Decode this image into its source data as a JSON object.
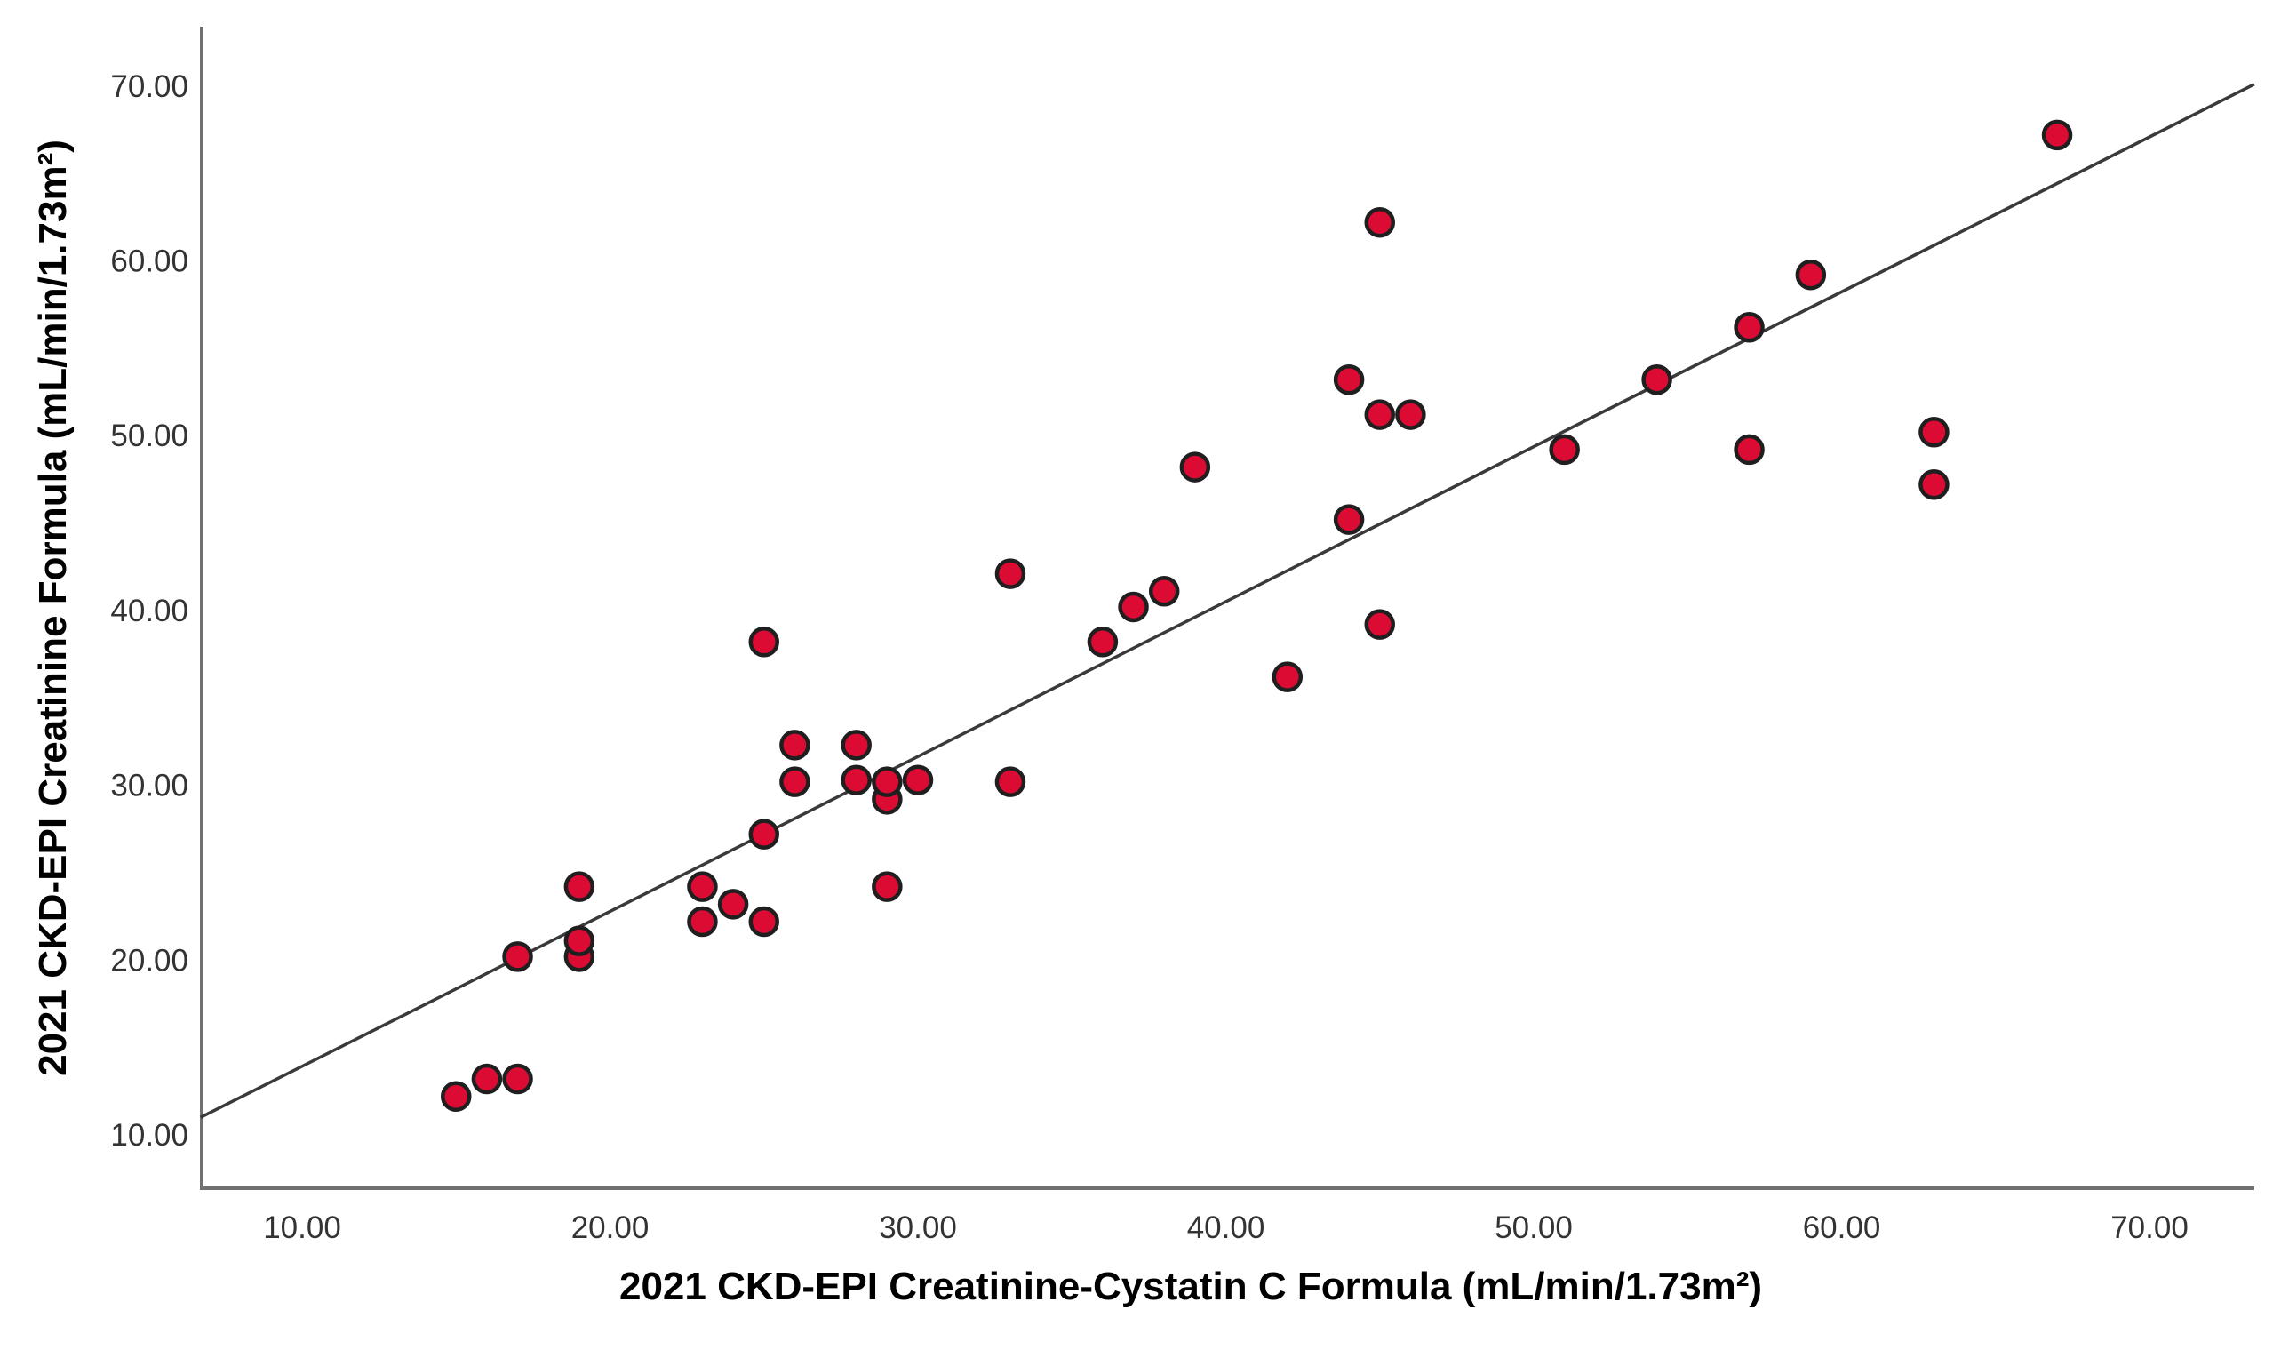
{
  "figure": {
    "background": "#ffffff"
  },
  "chart_data": {
    "type": "scatter",
    "title": "",
    "xlabel": "2021 CKD-EPI Creatinine-Cystatin C Formula (mL/min/1.73m²)",
    "ylabel": "2021 CKD-EPI Creatinine Formula (mL/min/1.73m²)",
    "xlim": [
      6.7,
      73.9
    ],
    "ylim": [
      6.9,
      74.8
    ],
    "grid": false,
    "legend": "none",
    "x_ticks": [
      {
        "v": 10,
        "label": "10.00"
      },
      {
        "v": 20,
        "label": "20.00"
      },
      {
        "v": 30,
        "label": "30.00"
      },
      {
        "v": 40,
        "label": "40.00"
      },
      {
        "v": 50,
        "label": "50.00"
      },
      {
        "v": 60,
        "label": "60.00"
      },
      {
        "v": 70,
        "label": "70.00"
      }
    ],
    "y_ticks": [
      {
        "v": 10,
        "label": "10.00"
      },
      {
        "v": 20,
        "label": "20.00"
      },
      {
        "v": 30,
        "label": "30.00"
      },
      {
        "v": 40,
        "label": "40.00"
      },
      {
        "v": 50,
        "label": "50.00"
      },
      {
        "v": 60,
        "label": "60.00"
      },
      {
        "v": 70,
        "label": "70.00"
      }
    ],
    "points": [
      [
        15,
        12.2
      ],
      [
        16,
        13.2
      ],
      [
        17,
        13.2
      ],
      [
        17,
        20.2
      ],
      [
        19,
        20.2
      ],
      [
        19,
        21.1
      ],
      [
        19,
        24.2
      ],
      [
        23,
        22.2
      ],
      [
        23,
        24.2
      ],
      [
        24,
        23.2
      ],
      [
        25,
        22.2
      ],
      [
        25,
        27.2
      ],
      [
        25,
        38.2
      ],
      [
        26,
        30.2
      ],
      [
        26,
        32.3
      ],
      [
        28,
        30.3
      ],
      [
        28,
        32.3
      ],
      [
        29,
        24.2
      ],
      [
        29,
        29.2
      ],
      [
        29,
        30.2
      ],
      [
        30,
        30.3
      ],
      [
        33,
        30.2
      ],
      [
        33,
        42.1
      ],
      [
        36,
        38.2
      ],
      [
        37,
        40.2
      ],
      [
        38,
        41.1
      ],
      [
        39,
        48.2
      ],
      [
        42,
        36.2
      ],
      [
        44,
        45.2
      ],
      [
        44,
        53.2
      ],
      [
        45,
        39.2
      ],
      [
        45,
        51.2
      ],
      [
        45,
        62.2
      ],
      [
        46,
        51.2
      ],
      [
        51,
        49.2
      ],
      [
        54,
        53.2
      ],
      [
        57,
        49.2
      ],
      [
        57,
        56.2
      ],
      [
        59,
        59.2
      ],
      [
        63,
        47.2
      ],
      [
        63,
        50.2
      ],
      [
        67,
        67.2
      ]
    ],
    "fit_line": {
      "x1": 6.7,
      "y1": 11.0,
      "x2": 73.4,
      "y2": 70.1
    },
    "colors": {
      "marker_fill": "#dc0b34",
      "marker_edge": "#1f1f1f",
      "fit_line": "#3a3a3a",
      "axis": "#707070",
      "tick_labels": "#333333",
      "axis_titles": "#000000"
    }
  }
}
